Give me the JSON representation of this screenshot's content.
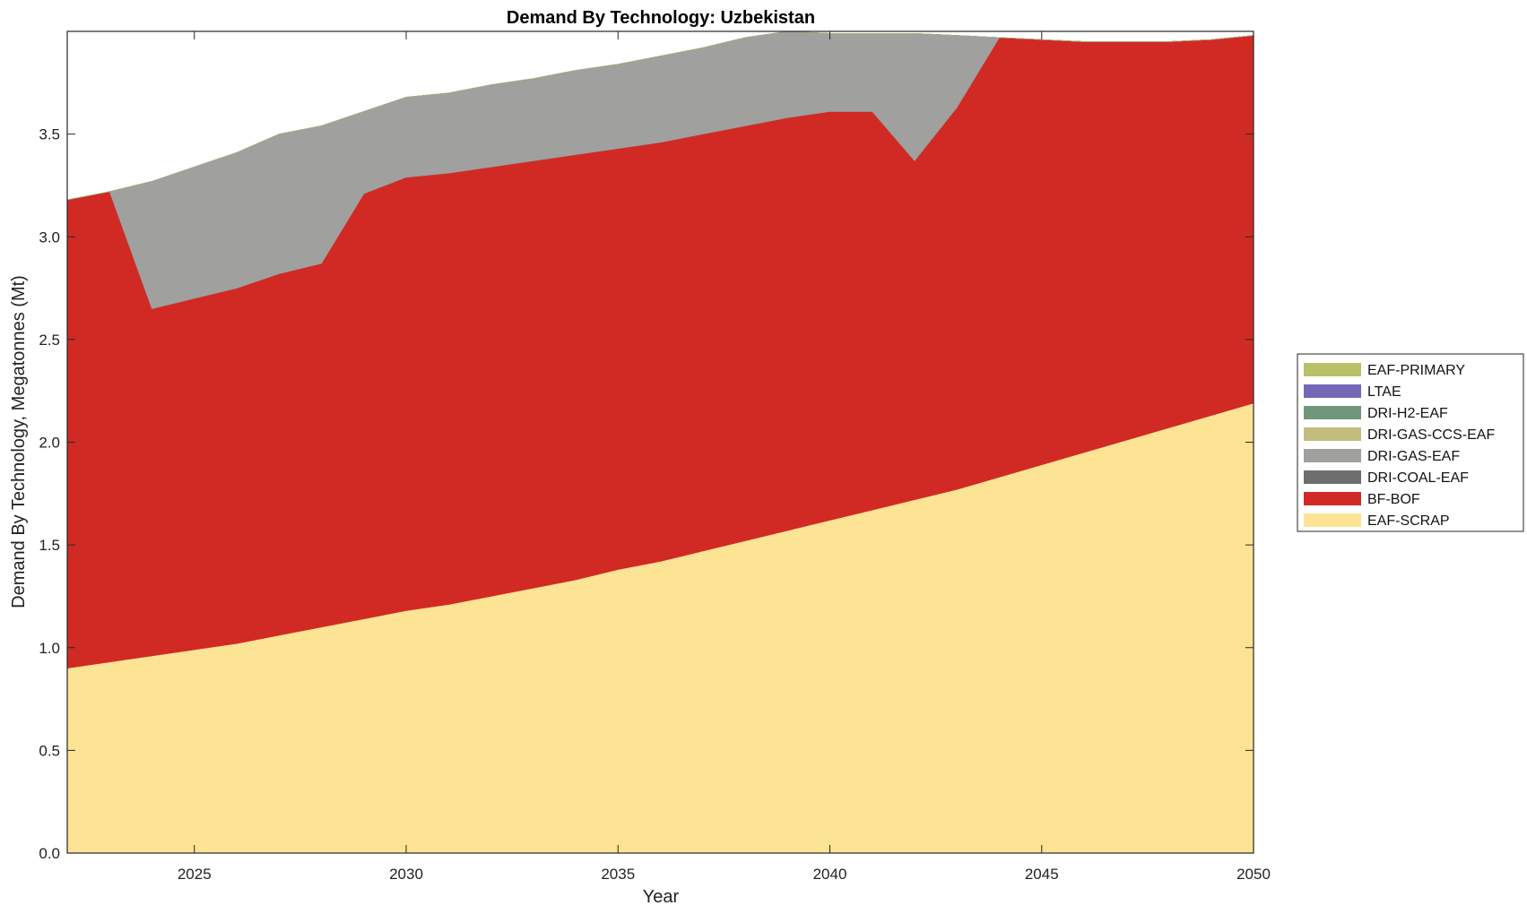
{
  "chart_data": {
    "type": "area",
    "stacked": true,
    "title": "Demand By Technology: Uzbekistan",
    "xlabel": "Year",
    "ylabel": "Demand By Technology, Megatonnes (Mt)",
    "xlim": [
      2022,
      2050
    ],
    "ylim": [
      0,
      4.0
    ],
    "xticks": [
      2025,
      2030,
      2035,
      2040,
      2045,
      2050
    ],
    "xtick_labels": [
      "2025",
      "2030",
      "2035",
      "2040",
      "2045",
      "2050"
    ],
    "yticks": [
      0,
      0.5,
      1.0,
      1.5,
      2.0,
      2.5,
      3.0,
      3.5
    ],
    "ytick_labels": [
      "0.0",
      "0.5",
      "1.0",
      "1.5",
      "2.0",
      "2.5",
      "3.0",
      "3.5"
    ],
    "grid": false,
    "legend_position": "right",
    "legend": [
      "EAF-PRIMARY",
      "LTAE",
      "DRI-H2-EAF",
      "DRI-GAS-CCS-EAF",
      "DRI-GAS-EAF",
      "DRI-COAL-EAF",
      "BF-BOF",
      "EAF-SCRAP"
    ],
    "x": [
      2022,
      2023,
      2024,
      2025,
      2026,
      2027,
      2028,
      2029,
      2030,
      2031,
      2032,
      2033,
      2034,
      2035,
      2036,
      2037,
      2038,
      2039,
      2040,
      2041,
      2042,
      2043,
      2044,
      2045,
      2046,
      2047,
      2048,
      2049,
      2050
    ],
    "series": [
      {
        "name": "EAF-SCRAP",
        "color": "#FDE394",
        "values": [
          0.9,
          0.93,
          0.96,
          0.99,
          1.02,
          1.06,
          1.1,
          1.14,
          1.18,
          1.21,
          1.25,
          1.29,
          1.33,
          1.38,
          1.42,
          1.47,
          1.52,
          1.57,
          1.62,
          1.67,
          1.72,
          1.77,
          1.83,
          1.89,
          1.95,
          2.01,
          2.07,
          2.13,
          2.19
        ]
      },
      {
        "name": "BF-BOF",
        "color": "#D12A24",
        "values": [
          2.28,
          2.29,
          1.69,
          1.71,
          1.73,
          1.76,
          1.77,
          2.07,
          2.11,
          2.1,
          2.09,
          2.08,
          2.07,
          2.05,
          2.04,
          2.03,
          2.02,
          2.01,
          1.99,
          1.94,
          1.65,
          1.86,
          2.14,
          2.07,
          2.0,
          1.94,
          1.88,
          1.83,
          1.79
        ]
      },
      {
        "name": "DRI-COAL-EAF",
        "color": "#6E6E6E",
        "values": [
          0,
          0,
          0,
          0,
          0,
          0,
          0,
          0,
          0,
          0,
          0,
          0,
          0,
          0,
          0,
          0,
          0,
          0,
          0,
          0,
          0,
          0,
          0,
          0,
          0,
          0,
          0,
          0,
          0
        ]
      },
      {
        "name": "DRI-GAS-EAF",
        "color": "#A0A09E",
        "values": [
          0,
          0,
          0.62,
          0.64,
          0.66,
          0.68,
          0.67,
          0.4,
          0.39,
          0.39,
          0.4,
          0.4,
          0.41,
          0.41,
          0.42,
          0.42,
          0.43,
          0.43,
          0.38,
          0.38,
          0.62,
          0.35,
          0,
          0,
          0,
          0,
          0,
          0,
          0
        ]
      },
      {
        "name": "DRI-GAS-CCS-EAF",
        "color": "#C4BC7E",
        "values": [
          0,
          0,
          0,
          0,
          0,
          0,
          0,
          0,
          0,
          0,
          0,
          0,
          0,
          0,
          0,
          0,
          0,
          0,
          0,
          0,
          0,
          0,
          0,
          0,
          0,
          0,
          0,
          0,
          0
        ]
      },
      {
        "name": "DRI-H2-EAF",
        "color": "#72967A",
        "values": [
          0,
          0,
          0,
          0,
          0,
          0,
          0,
          0,
          0,
          0,
          0,
          0,
          0,
          0,
          0,
          0,
          0,
          0,
          0,
          0,
          0,
          0,
          0,
          0,
          0,
          0,
          0,
          0,
          0
        ]
      },
      {
        "name": "LTAE",
        "color": "#7467B8",
        "values": [
          0,
          0,
          0,
          0,
          0,
          0,
          0,
          0,
          0,
          0,
          0,
          0,
          0,
          0,
          0,
          0,
          0,
          0,
          0,
          0,
          0,
          0,
          0,
          0,
          0,
          0,
          0,
          0,
          0
        ]
      },
      {
        "name": "EAF-PRIMARY",
        "color": "#B8C06A",
        "values": [
          0,
          0,
          0,
          0,
          0,
          0,
          0,
          0,
          0,
          0,
          0,
          0,
          0,
          0,
          0,
          0,
          0,
          0,
          0,
          0,
          0,
          0,
          0,
          0,
          0,
          0,
          0,
          0,
          0
        ]
      }
    ]
  }
}
